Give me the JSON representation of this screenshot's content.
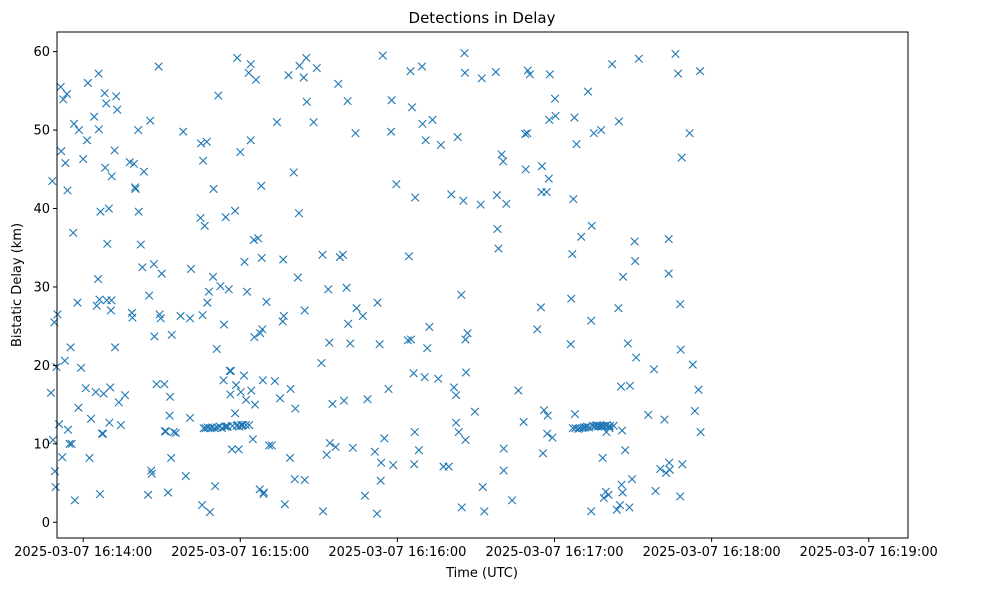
{
  "chart_data": {
    "type": "scatter",
    "title": "Detections in Delay",
    "xlabel": "Time (UTC)",
    "ylabel": "Bistatic Delay (km)",
    "marker": "x",
    "color": "#1f77b4",
    "grid": false,
    "x_unit": "seconds after 2025-03-07 16:14:00 UTC",
    "xlim": [
      -10,
      315
    ],
    "ylim": [
      -2,
      62.5
    ],
    "x_ticks": [
      0,
      60,
      120,
      180,
      240,
      300
    ],
    "x_tick_labels": [
      "2025-03-07 16:14:00",
      "2025-03-07 16:15:00",
      "2025-03-07 16:16:00",
      "2025-03-07 16:17:00",
      "2025-03-07 16:18:00",
      "2025-03-07 16:19:00"
    ],
    "y_ticks": [
      0,
      10,
      20,
      30,
      40,
      50,
      60
    ],
    "y_tick_labels": [
      "0",
      "10",
      "20",
      "30",
      "40",
      "50",
      "60"
    ],
    "points": [
      [
        -12.3,
        16.5
      ],
      [
        -11.8,
        43.5
      ],
      [
        -11.5,
        10.5
      ],
      [
        -11.0,
        25.5
      ],
      [
        -10.8,
        6.5
      ],
      [
        -10.5,
        4.5
      ],
      [
        -10.2,
        19.8
      ],
      [
        -9.8,
        26.5
      ],
      [
        -9.2,
        12.5
      ],
      [
        -8.6,
        55.5
      ],
      [
        -8.4,
        47.3
      ],
      [
        -8.0,
        8.3
      ],
      [
        -7.6,
        53.9
      ],
      [
        -7.0,
        20.6
      ],
      [
        -6.8,
        45.8
      ],
      [
        -6.2,
        54.6
      ],
      [
        -6.0,
        42.3
      ],
      [
        -5.8,
        11.8
      ],
      [
        -5.2,
        10.0
      ],
      [
        -4.8,
        22.3
      ],
      [
        -4.4,
        10.0
      ],
      [
        -3.8,
        36.9
      ],
      [
        -3.5,
        50.8
      ],
      [
        -3.2,
        2.8
      ],
      [
        -2.2,
        28.0
      ],
      [
        -1.8,
        14.6
      ],
      [
        -1.6,
        50.0
      ],
      [
        -0.8,
        19.7
      ],
      [
        0.0,
        46.3
      ],
      [
        1.0,
        17.1
      ],
      [
        1.5,
        48.7
      ],
      [
        1.8,
        56.0
      ],
      [
        2.4,
        8.2
      ],
      [
        3.0,
        13.2
      ],
      [
        4.2,
        51.7
      ],
      [
        4.8,
        16.6
      ],
      [
        5.2,
        27.6
      ],
      [
        5.7,
        31.0
      ],
      [
        5.9,
        57.2
      ],
      [
        6.0,
        50.1
      ],
      [
        6.2,
        28.4
      ],
      [
        6.4,
        3.6
      ],
      [
        6.6,
        39.6
      ],
      [
        7.2,
        11.3
      ],
      [
        7.6,
        11.3
      ],
      [
        7.8,
        16.4
      ],
      [
        8.2,
        54.7
      ],
      [
        8.4,
        45.2
      ],
      [
        8.8,
        53.4
      ],
      [
        9.0,
        28.3
      ],
      [
        9.2,
        35.5
      ],
      [
        9.8,
        40.0
      ],
      [
        10.0,
        12.7
      ],
      [
        10.3,
        17.2
      ],
      [
        10.6,
        27.0
      ],
      [
        10.8,
        28.3
      ],
      [
        10.9,
        44.1
      ],
      [
        12.0,
        47.4
      ],
      [
        12.2,
        22.3
      ],
      [
        12.6,
        54.3
      ],
      [
        13.0,
        52.6
      ],
      [
        13.6,
        15.3
      ],
      [
        14.4,
        12.4
      ],
      [
        16.0,
        16.2
      ],
      [
        17.8,
        45.9
      ],
      [
        18.6,
        26.7
      ],
      [
        18.8,
        26.1
      ],
      [
        19.4,
        45.7
      ],
      [
        19.8,
        42.7
      ],
      [
        20.0,
        42.5
      ],
      [
        21.0,
        50.0
      ],
      [
        21.2,
        39.6
      ],
      [
        22.0,
        35.4
      ],
      [
        22.6,
        32.5
      ],
      [
        23.2,
        44.7
      ],
      [
        24.8,
        3.5
      ],
      [
        25.2,
        28.9
      ],
      [
        25.6,
        51.2
      ],
      [
        26.0,
        6.6
      ],
      [
        26.2,
        6.2
      ],
      [
        27.0,
        32.9
      ],
      [
        27.2,
        23.7
      ],
      [
        28.0,
        17.6
      ],
      [
        28.8,
        58.1
      ],
      [
        29.2,
        26.5
      ],
      [
        29.6,
        26.0
      ],
      [
        30.0,
        31.7
      ],
      [
        31.0,
        17.6
      ],
      [
        31.2,
        11.6
      ],
      [
        31.6,
        11.6
      ],
      [
        32.4,
        3.8
      ],
      [
        33.0,
        13.6
      ],
      [
        33.2,
        16.0
      ],
      [
        33.6,
        8.2
      ],
      [
        33.8,
        23.9
      ],
      [
        34.6,
        11.5
      ],
      [
        35.4,
        11.4
      ],
      [
        37.2,
        26.3
      ],
      [
        38.2,
        49.8
      ],
      [
        39.2,
        5.9
      ],
      [
        40.8,
        26.0
      ],
      [
        40.8,
        13.3
      ],
      [
        41.2,
        32.3
      ],
      [
        44.8,
        38.8
      ],
      [
        45.0,
        48.3
      ],
      [
        45.4,
        2.2
      ],
      [
        45.6,
        26.4
      ],
      [
        45.8,
        46.1
      ],
      [
        46.0,
        12.0
      ],
      [
        46.4,
        37.8
      ],
      [
        46.8,
        12.0
      ],
      [
        47.2,
        48.5
      ],
      [
        47.4,
        28.0
      ],
      [
        47.6,
        12.1
      ],
      [
        48.0,
        29.4
      ],
      [
        48.4,
        1.3
      ],
      [
        48.6,
        12.0
      ],
      [
        49.2,
        12.1
      ],
      [
        49.6,
        31.3
      ],
      [
        49.8,
        42.5
      ],
      [
        50.2,
        12.0
      ],
      [
        50.4,
        4.6
      ],
      [
        51.0,
        22.1
      ],
      [
        51.2,
        12.1
      ],
      [
        51.6,
        54.4
      ],
      [
        52.2,
        12.2
      ],
      [
        52.4,
        30.1
      ],
      [
        53.0,
        12.0
      ],
      [
        53.6,
        18.1
      ],
      [
        53.8,
        25.2
      ],
      [
        54.2,
        12.2
      ],
      [
        54.4,
        38.9
      ],
      [
        54.8,
        12.2
      ],
      [
        55.2,
        12.2
      ],
      [
        55.6,
        29.7
      ],
      [
        56.0,
        19.3
      ],
      [
        56.2,
        16.3
      ],
      [
        56.4,
        19.3
      ],
      [
        56.8,
        9.3
      ],
      [
        57.0,
        12.3
      ],
      [
        58.0,
        39.7
      ],
      [
        58.0,
        13.9
      ],
      [
        58.4,
        17.5
      ],
      [
        58.6,
        12.3
      ],
      [
        58.8,
        59.2
      ],
      [
        59.0,
        12.4
      ],
      [
        59.4,
        9.3
      ],
      [
        59.6,
        12.2
      ],
      [
        60.0,
        47.2
      ],
      [
        60.2,
        16.6
      ],
      [
        60.4,
        12.4
      ],
      [
        60.6,
        12.3
      ],
      [
        61.0,
        12.4
      ],
      [
        61.4,
        18.7
      ],
      [
        61.6,
        33.2
      ],
      [
        62.2,
        15.6
      ],
      [
        62.2,
        12.4
      ],
      [
        62.6,
        29.4
      ],
      [
        63.2,
        57.3
      ],
      [
        63.4,
        12.4
      ],
      [
        64.0,
        48.7
      ],
      [
        64.0,
        58.4
      ],
      [
        64.2,
        16.8
      ],
      [
        64.8,
        10.6
      ],
      [
        65.2,
        36.0
      ],
      [
        65.4,
        23.6
      ],
      [
        65.6,
        15.0
      ],
      [
        66.0,
        56.4
      ],
      [
        66.8,
        36.2
      ],
      [
        67.4,
        4.2
      ],
      [
        67.6,
        24.1
      ],
      [
        68.0,
        42.9
      ],
      [
        68.2,
        33.7
      ],
      [
        68.4,
        24.6
      ],
      [
        68.6,
        18.1
      ],
      [
        68.8,
        3.6
      ],
      [
        69.0,
        3.8
      ],
      [
        70.0,
        28.1
      ],
      [
        71.0,
        9.8
      ],
      [
        72.0,
        9.8
      ],
      [
        73.2,
        18.0
      ],
      [
        74.0,
        51.0
      ],
      [
        75.2,
        15.8
      ],
      [
        76.2,
        25.6
      ],
      [
        76.4,
        33.5
      ],
      [
        76.6,
        26.3
      ],
      [
        77.0,
        2.3
      ],
      [
        78.4,
        57.0
      ],
      [
        79.0,
        8.2
      ],
      [
        79.2,
        17.0
      ],
      [
        80.4,
        44.6
      ],
      [
        80.8,
        5.5
      ],
      [
        81.0,
        14.5
      ],
      [
        82.0,
        31.2
      ],
      [
        82.4,
        39.4
      ],
      [
        82.6,
        58.2
      ],
      [
        84.2,
        56.7
      ],
      [
        84.6,
        5.4
      ],
      [
        84.6,
        27.0
      ],
      [
        85.2,
        59.2
      ],
      [
        85.4,
        53.6
      ],
      [
        88.0,
        51.0
      ],
      [
        89.2,
        57.9
      ],
      [
        91.0,
        20.3
      ],
      [
        91.4,
        34.1
      ],
      [
        91.6,
        1.4
      ],
      [
        93.0,
        8.6
      ],
      [
        93.6,
        29.7
      ],
      [
        94.0,
        22.9
      ],
      [
        94.2,
        10.1
      ],
      [
        95.2,
        15.1
      ],
      [
        96.4,
        9.6
      ],
      [
        97.4,
        55.9
      ],
      [
        98.0,
        33.8
      ],
      [
        99.2,
        34.1
      ],
      [
        99.6,
        15.5
      ],
      [
        100.6,
        29.9
      ],
      [
        101.0,
        53.7
      ],
      [
        101.2,
        25.3
      ],
      [
        102.0,
        22.8
      ],
      [
        103.0,
        9.5
      ],
      [
        104.0,
        49.6
      ],
      [
        104.4,
        27.3
      ],
      [
        106.8,
        26.3
      ],
      [
        107.6,
        3.4
      ],
      [
        108.6,
        15.7
      ],
      [
        111.4,
        9.0
      ],
      [
        112.2,
        1.1
      ],
      [
        112.4,
        28.0
      ],
      [
        113.2,
        22.7
      ],
      [
        113.6,
        5.3
      ],
      [
        113.8,
        7.6
      ],
      [
        114.4,
        59.5
      ],
      [
        115.0,
        10.7
      ],
      [
        116.6,
        17.0
      ],
      [
        117.6,
        49.8
      ],
      [
        117.8,
        53.8
      ],
      [
        118.4,
        7.3
      ],
      [
        119.6,
        43.1
      ],
      [
        124.0,
        23.2
      ],
      [
        124.4,
        33.9
      ],
      [
        125.0,
        57.5
      ],
      [
        125.2,
        23.3
      ],
      [
        125.6,
        52.9
      ],
      [
        126.2,
        19.0
      ],
      [
        126.4,
        7.4
      ],
      [
        126.6,
        11.5
      ],
      [
        126.8,
        41.4
      ],
      [
        128.2,
        9.2
      ],
      [
        129.4,
        58.1
      ],
      [
        129.6,
        50.8
      ],
      [
        130.4,
        18.5
      ],
      [
        130.8,
        48.7
      ],
      [
        131.4,
        22.2
      ],
      [
        132.2,
        24.9
      ],
      [
        133.4,
        51.3
      ],
      [
        135.6,
        18.3
      ],
      [
        136.6,
        48.1
      ],
      [
        137.6,
        7.1
      ],
      [
        139.6,
        7.1
      ],
      [
        140.6,
        41.8
      ],
      [
        141.6,
        17.2
      ],
      [
        142.4,
        16.2
      ],
      [
        142.4,
        12.7
      ],
      [
        143.0,
        49.1
      ],
      [
        143.4,
        11.5
      ],
      [
        144.4,
        29.0
      ],
      [
        144.6,
        1.9
      ],
      [
        145.2,
        41.0
      ],
      [
        145.6,
        59.8
      ],
      [
        145.8,
        57.3
      ],
      [
        146.0,
        10.5
      ],
      [
        146.0,
        23.3
      ],
      [
        146.2,
        19.1
      ],
      [
        146.8,
        24.1
      ],
      [
        149.6,
        14.1
      ],
      [
        151.8,
        40.5
      ],
      [
        152.2,
        56.6
      ],
      [
        152.6,
        4.5
      ],
      [
        153.2,
        1.4
      ],
      [
        157.6,
        57.4
      ],
      [
        158.0,
        41.7
      ],
      [
        158.2,
        37.4
      ],
      [
        158.6,
        34.9
      ],
      [
        159.8,
        46.9
      ],
      [
        160.4,
        46.0
      ],
      [
        160.6,
        9.4
      ],
      [
        160.6,
        6.6
      ],
      [
        161.6,
        40.6
      ],
      [
        163.8,
        2.8
      ],
      [
        166.2,
        16.8
      ],
      [
        168.2,
        12.8
      ],
      [
        168.8,
        49.5
      ],
      [
        169.0,
        45.0
      ],
      [
        169.6,
        49.6
      ],
      [
        169.8,
        57.6
      ],
      [
        170.6,
        57.1
      ],
      [
        173.4,
        24.6
      ],
      [
        174.8,
        27.4
      ],
      [
        175.0,
        42.1
      ],
      [
        175.2,
        45.4
      ],
      [
        175.6,
        8.8
      ],
      [
        176.0,
        14.3
      ],
      [
        177.0,
        42.1
      ],
      [
        177.2,
        11.3
      ],
      [
        177.4,
        13.6
      ],
      [
        177.8,
        43.8
      ],
      [
        178.0,
        51.3
      ],
      [
        178.2,
        57.1
      ],
      [
        179.2,
        10.8
      ],
      [
        180.2,
        54.0
      ],
      [
        180.4,
        51.8
      ],
      [
        186.2,
        22.7
      ],
      [
        186.4,
        28.5
      ],
      [
        186.8,
        34.2
      ],
      [
        187.0,
        12.0
      ],
      [
        187.2,
        41.2
      ],
      [
        187.6,
        51.6
      ],
      [
        187.8,
        13.8
      ],
      [
        188.0,
        12.0
      ],
      [
        188.4,
        48.2
      ],
      [
        189.0,
        11.9
      ],
      [
        189.6,
        12.0
      ],
      [
        190.2,
        36.4
      ],
      [
        190.6,
        12.0
      ],
      [
        191.2,
        12.1
      ],
      [
        191.8,
        12.1
      ],
      [
        192.4,
        12.2
      ],
      [
        192.8,
        54.9
      ],
      [
        193.2,
        12.1
      ],
      [
        194.0,
        1.4
      ],
      [
        194.0,
        25.7
      ],
      [
        194.2,
        37.8
      ],
      [
        194.6,
        12.3
      ],
      [
        195.0,
        49.6
      ],
      [
        195.2,
        12.2
      ],
      [
        195.8,
        12.3
      ],
      [
        196.2,
        12.4
      ],
      [
        196.6,
        12.2
      ],
      [
        197.2,
        12.3
      ],
      [
        197.8,
        50.0
      ],
      [
        197.8,
        12.3
      ],
      [
        198.2,
        12.2
      ],
      [
        198.4,
        8.2
      ],
      [
        198.6,
        12.3
      ],
      [
        198.8,
        3.1
      ],
      [
        199.4,
        12.3
      ],
      [
        199.6,
        3.9
      ],
      [
        199.8,
        11.5
      ],
      [
        200.0,
        12.4
      ],
      [
        200.6,
        3.5
      ],
      [
        200.8,
        12.2
      ],
      [
        201.0,
        12.0
      ],
      [
        201.2,
        12.3
      ],
      [
        202.0,
        58.4
      ],
      [
        202.6,
        12.3
      ],
      [
        203.8,
        1.6
      ],
      [
        204.4,
        27.3
      ],
      [
        204.6,
        51.1
      ],
      [
        205.0,
        2.2
      ],
      [
        205.4,
        17.3
      ],
      [
        205.6,
        4.8
      ],
      [
        205.8,
        11.7
      ],
      [
        206.0,
        3.8
      ],
      [
        206.2,
        31.3
      ],
      [
        207.0,
        9.2
      ],
      [
        208.0,
        22.8
      ],
      [
        208.6,
        1.9
      ],
      [
        208.8,
        17.4
      ],
      [
        209.6,
        5.5
      ],
      [
        210.6,
        35.8
      ],
      [
        210.8,
        33.3
      ],
      [
        211.2,
        21.0
      ],
      [
        212.2,
        59.1
      ],
      [
        215.8,
        13.7
      ],
      [
        218.0,
        19.5
      ],
      [
        218.6,
        4.0
      ],
      [
        220.4,
        6.8
      ],
      [
        222.0,
        13.1
      ],
      [
        222.6,
        6.3
      ],
      [
        223.6,
        31.7
      ],
      [
        223.6,
        36.1
      ],
      [
        223.8,
        7.6
      ],
      [
        224.0,
        6.7
      ],
      [
        226.2,
        59.7
      ],
      [
        227.2,
        57.2
      ],
      [
        228.0,
        27.8
      ],
      [
        228.0,
        3.3
      ],
      [
        228.2,
        22.0
      ],
      [
        228.6,
        46.5
      ],
      [
        228.8,
        7.4
      ],
      [
        231.6,
        49.6
      ],
      [
        232.8,
        20.1
      ],
      [
        233.6,
        14.2
      ],
      [
        235.0,
        16.9
      ],
      [
        235.6,
        57.5
      ],
      [
        235.8,
        11.5
      ]
    ]
  }
}
